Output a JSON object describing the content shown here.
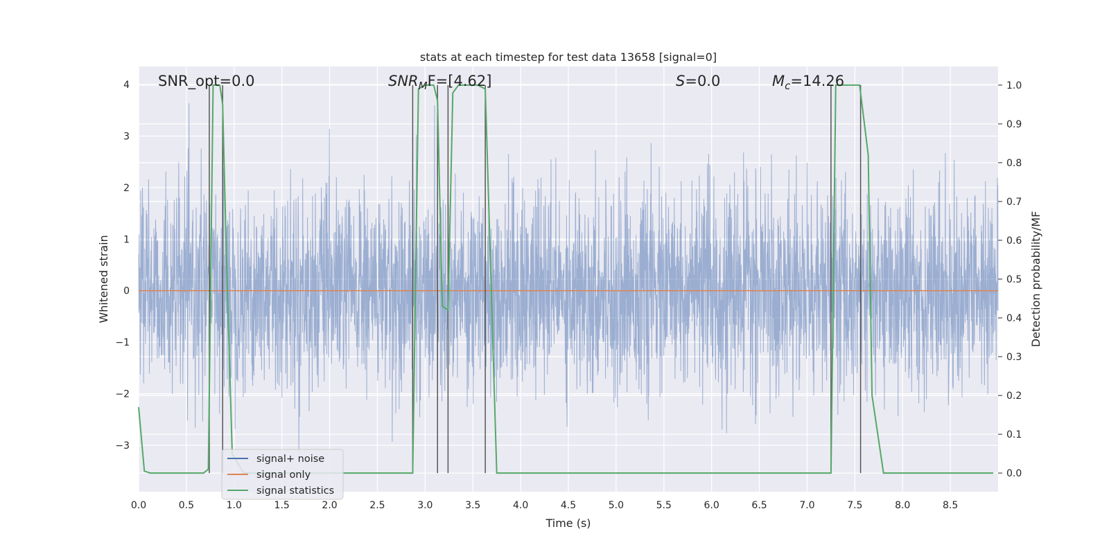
{
  "chart_data": {
    "type": "line",
    "title": "stats at each timestep for test data 13658 [signal=0]",
    "xlabel": "Time (s)",
    "ylabel_left": "Whitened strain",
    "ylabel_right": "Detection probability/MF",
    "xlim": [
      0.0,
      9.0
    ],
    "ylim_left": [
      -3.9,
      4.35
    ],
    "ylim_right": [
      -0.048,
      1.048
    ],
    "xticks": [
      "0.0",
      "0.5",
      "1.0",
      "1.5",
      "2.0",
      "2.5",
      "3.0",
      "3.5",
      "4.0",
      "4.5",
      "5.0",
      "5.5",
      "6.0",
      "6.5",
      "7.0",
      "7.5",
      "8.0",
      "8.5"
    ],
    "yticks_left": [
      "4",
      "3",
      "2",
      "1",
      "0",
      "−1",
      "−2",
      "−3"
    ],
    "yticks_right": [
      "1.0",
      "0.9",
      "0.8",
      "0.7",
      "0.6",
      "0.5",
      "0.4",
      "0.3",
      "0.2",
      "0.1",
      "0.0"
    ],
    "grid": true,
    "legend_position": "lower-left",
    "annotations": {
      "snr_opt": "SNR_opt=0.0",
      "snr_mf_sym": "SNR",
      "snr_mf_sub": "M",
      "snr_mf_rest": "F=[4.62]",
      "s_sym": "S",
      "s_rest": "=0.0",
      "mc_sym": "M",
      "mc_sub": "c",
      "mc_rest": "=14.26"
    },
    "series": [
      {
        "name": "signal+ noise",
        "color": "#4c72b0",
        "axis": "left",
        "description_values": "whitened noise samples between about -3.6 and 4.0"
      },
      {
        "name": "signal only",
        "color": "#dd8452",
        "axis": "left",
        "x": [
          0.0,
          9.0
        ],
        "y": [
          0.0,
          0.0
        ]
      },
      {
        "name": "signal statistics",
        "color": "#55a868",
        "axis": "right",
        "x": [
          0.0,
          0.06,
          0.12,
          0.3,
          0.5,
          0.68,
          0.73,
          0.78,
          0.85,
          0.88,
          0.92,
          0.98,
          1.1,
          1.3,
          1.6,
          2.0,
          2.5,
          2.87,
          2.93,
          3.0,
          3.09,
          3.13,
          3.18,
          3.24,
          3.29,
          3.35,
          3.45,
          3.55,
          3.63,
          3.75,
          4.0,
          5.0,
          6.0,
          7.0,
          7.25,
          7.3,
          7.4,
          7.55,
          7.64,
          7.68,
          7.8,
          8.0,
          8.5,
          8.95
        ],
        "y": [
          0.17,
          0.005,
          0.0,
          0.0,
          0.0,
          0.0,
          0.01,
          1.0,
          1.0,
          0.95,
          0.55,
          0.05,
          0.0,
          0.0,
          0.0,
          0.0,
          0.0,
          0.0,
          0.99,
          1.0,
          1.0,
          0.96,
          0.43,
          0.42,
          0.98,
          1.0,
          1.0,
          1.0,
          0.99,
          0.0,
          0.0,
          0.0,
          0.0,
          0.0,
          0.0,
          1.0,
          1.0,
          1.0,
          0.82,
          0.2,
          0.0,
          0.0,
          0.0,
          0.0
        ]
      }
    ],
    "vertical_markers": [
      0.74,
      0.88,
      2.87,
      3.13,
      3.24,
      3.63,
      7.25,
      7.56
    ]
  }
}
